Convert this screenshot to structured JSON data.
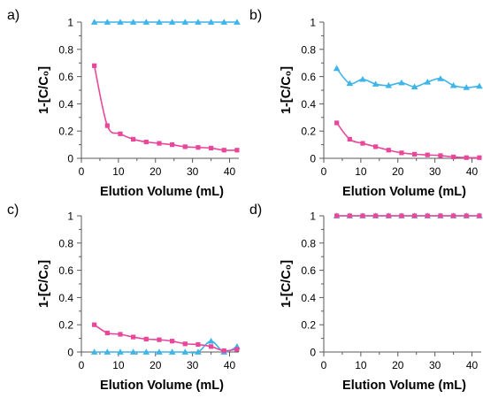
{
  "colors": {
    "pink": "#e8479a",
    "blue": "#3eb4e8"
  },
  "chart_data": [
    {
      "panel": "a)",
      "type": "line",
      "xlabel": "Elution Volume (mL)",
      "ylabel": "1-[C/C₀]",
      "xlim": [
        0,
        42.5
      ],
      "ylim": [
        0,
        1
      ],
      "xticks": [
        "0",
        "10",
        "20",
        "30",
        "40"
      ],
      "yticks": [
        "0",
        "0.2",
        "0.4",
        "0.6",
        "0.8",
        "1"
      ],
      "series": [
        {
          "color": "#3eb4e8",
          "marker": "triangle",
          "x": [
            3.5,
            7,
            10.5,
            14,
            17.5,
            21,
            24.5,
            28,
            31.5,
            35,
            38.5,
            42
          ],
          "y": [
            1,
            1,
            1,
            1,
            1,
            1,
            1,
            1,
            1,
            1,
            1,
            1
          ]
        },
        {
          "color": "#e8479a",
          "marker": "square",
          "x": [
            3.5,
            7,
            10.5,
            14,
            17.5,
            21,
            24.5,
            28,
            31.5,
            35,
            38.5,
            42
          ],
          "y": [
            0.68,
            0.24,
            0.18,
            0.14,
            0.12,
            0.11,
            0.1,
            0.085,
            0.08,
            0.075,
            0.06,
            0.06
          ]
        }
      ]
    },
    {
      "panel": "b)",
      "type": "line",
      "xlabel": "Elution Volume (mL)",
      "ylabel": "1-[C/C₀]",
      "xlim": [
        0,
        42.5
      ],
      "ylim": [
        0,
        1
      ],
      "xticks": [
        "0",
        "10",
        "20",
        "30",
        "40"
      ],
      "yticks": [
        "0",
        "0.2",
        "0.4",
        "0.6",
        "0.8",
        "1"
      ],
      "series": [
        {
          "color": "#3eb4e8",
          "marker": "triangle",
          "x": [
            3.5,
            7,
            10.5,
            14,
            17.5,
            21,
            24.5,
            28,
            31.5,
            35,
            38.5,
            42
          ],
          "y": [
            0.66,
            0.55,
            0.58,
            0.545,
            0.535,
            0.555,
            0.525,
            0.56,
            0.585,
            0.535,
            0.52,
            0.53
          ]
        },
        {
          "color": "#e8479a",
          "marker": "square",
          "x": [
            3.5,
            7,
            10.5,
            14,
            17.5,
            21,
            24.5,
            28,
            31.5,
            35,
            38.5,
            42
          ],
          "y": [
            0.26,
            0.14,
            0.11,
            0.085,
            0.06,
            0.04,
            0.03,
            0.025,
            0.02,
            0.01,
            0.005,
            0.005
          ]
        }
      ]
    },
    {
      "panel": "c)",
      "type": "line",
      "xlabel": "Elution Volume (mL)",
      "ylabel": "1-[C/C₀]",
      "xlim": [
        0,
        42.5
      ],
      "ylim": [
        0,
        1
      ],
      "xticks": [
        "0",
        "10",
        "20",
        "30",
        "40"
      ],
      "yticks": [
        "0",
        "0.2",
        "0.4",
        "0.6",
        "0.8",
        "1"
      ],
      "series": [
        {
          "color": "#3eb4e8",
          "marker": "triangle",
          "x": [
            3.5,
            7,
            10.5,
            14,
            17.5,
            21,
            24.5,
            28,
            31.5,
            35,
            38.5,
            42
          ],
          "y": [
            0,
            0,
            0,
            0,
            0,
            0,
            0,
            0,
            0,
            0.08,
            0,
            0.04
          ]
        },
        {
          "color": "#e8479a",
          "marker": "square",
          "x": [
            3.5,
            7,
            10.5,
            14,
            17.5,
            21,
            24.5,
            28,
            31.5,
            35,
            38.5,
            42
          ],
          "y": [
            0.2,
            0.14,
            0.13,
            0.11,
            0.095,
            0.09,
            0.08,
            0.06,
            0.055,
            0.04,
            0.01,
            0.02
          ]
        }
      ]
    },
    {
      "panel": "d)",
      "type": "line",
      "xlabel": "Elution Volume (mL)",
      "ylabel": "1-[C/C₀]",
      "xlim": [
        0,
        42.5
      ],
      "ylim": [
        0,
        1
      ],
      "xticks": [
        "0",
        "10",
        "20",
        "30",
        "40"
      ],
      "yticks": [
        "0",
        "0.2",
        "0.4",
        "0.6",
        "0.8",
        "1"
      ],
      "series": [
        {
          "color": "#3eb4e8",
          "marker": "triangle",
          "x": [
            3.5,
            7,
            10.5,
            14,
            17.5,
            21,
            24.5,
            28,
            31.5,
            35,
            38.5,
            42
          ],
          "y": [
            1,
            1,
            1,
            1,
            1,
            1,
            1,
            1,
            1,
            1,
            1,
            1
          ]
        },
        {
          "color": "#e8479a",
          "marker": "square",
          "x": [
            3.5,
            7,
            10.5,
            14,
            17.5,
            21,
            24.5,
            28,
            31.5,
            35,
            38.5,
            42
          ],
          "y": [
            1,
            1,
            1,
            1,
            1,
            1,
            1,
            1,
            1,
            1,
            1,
            1
          ]
        }
      ]
    }
  ]
}
